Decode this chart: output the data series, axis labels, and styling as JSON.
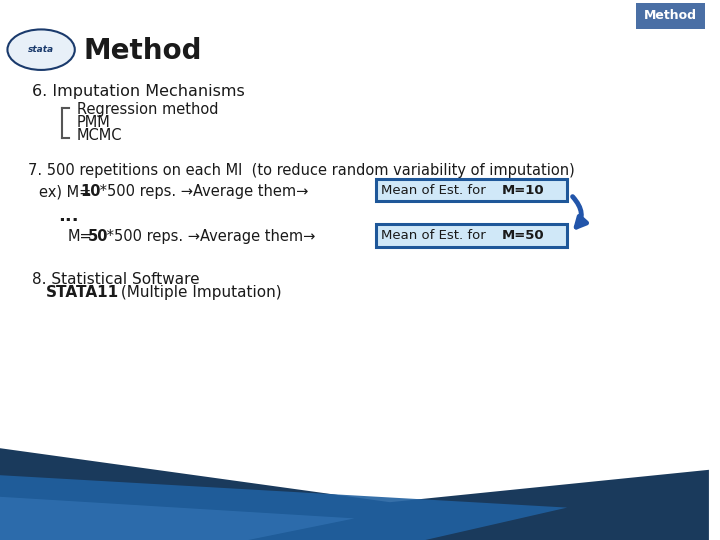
{
  "bg_color": "#ffffff",
  "header_bg": "#4a6fa5",
  "header_text": "Method",
  "header_text_color": "#ffffff",
  "title_text": "Method",
  "title_color": "#1a1a1a",
  "section6_title": "6. Imputation Mechanisms",
  "section6_items": [
    "Regression method",
    "PMM",
    "MCMC"
  ],
  "section7_title": "7. 500 repetitions on each MI  (to reduce random variability of imputation)",
  "box1_label": "Mean of Est. for ",
  "box1_bold": "M=10",
  "box2_label": "Mean of Est. for ",
  "box2_bold": "M=50",
  "box_border_color": "#1e5799",
  "box_bg_color": "#d0e8f8",
  "arrow_color": "#2255aa",
  "bracket_color": "#555555",
  "section8_line1": "8. Statistical Software",
  "section8_bold": "STATA11",
  "section8_rest": " (Multiple Imputation)",
  "footer_dark": "#1a3a5c",
  "footer_mid": "#2060a0",
  "footer_light": "#3070b0"
}
